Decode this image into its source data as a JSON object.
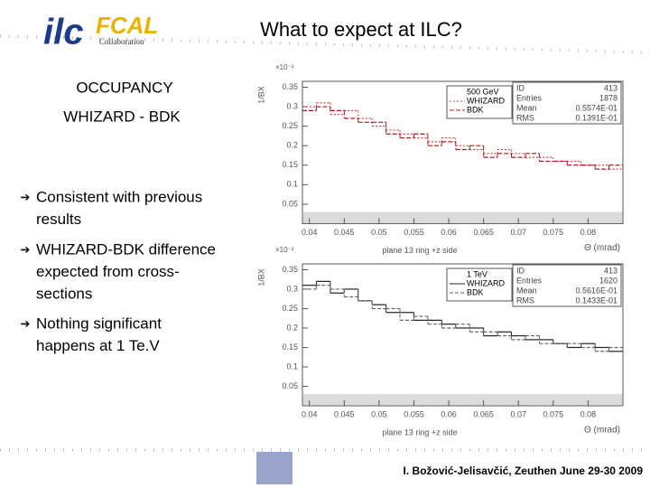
{
  "title": "What to expect at ILC?",
  "logo": {
    "main": "ilc",
    "sub": "FCAL",
    "caption": "Collaboration"
  },
  "subtitle": [
    "OCCUPANCY",
    "WHIZARD - BDK"
  ],
  "bullets": [
    [
      "Consistent with previous",
      "results"
    ],
    [
      "WHIZARD-BDK difference",
      "expected  from cross-",
      "sections"
    ],
    [
      "Nothing significant",
      "happens at 1 Te.V"
    ]
  ],
  "footer": "I. Božović-Jelisavčić, Zeuthen June 29-30 2009",
  "chart_data": [
    {
      "type": "histogram",
      "legend_title": "500 GeV",
      "y_multiplier": "×10⁻²",
      "ylabel": "1/BX",
      "xlabel": "Θ (mrad)",
      "caption": "plane 13 ring +z side",
      "bins": [
        0.039,
        0.041,
        0.043,
        0.045,
        0.047,
        0.049,
        0.051,
        0.053,
        0.055,
        0.057,
        0.059,
        0.061,
        0.063,
        0.065,
        0.067,
        0.069,
        0.071,
        0.073,
        0.075,
        0.077,
        0.079,
        0.081,
        0.083,
        0.085
      ],
      "series": [
        {
          "name": "WHIZARD",
          "color": "#d23c3c",
          "dash": "2,2",
          "values": [
            0.3,
            0.31,
            0.28,
            0.29,
            0.27,
            0.25,
            0.24,
            0.23,
            0.22,
            0.21,
            0.22,
            0.2,
            0.19,
            0.18,
            0.19,
            0.18,
            0.17,
            0.17,
            0.16,
            0.16,
            0.15,
            0.15,
            0.14
          ]
        },
        {
          "name": "BDK",
          "color": "#b01818",
          "dash": "5,2",
          "values": [
            0.29,
            0.3,
            0.29,
            0.27,
            0.26,
            0.26,
            0.23,
            0.22,
            0.23,
            0.2,
            0.21,
            0.19,
            0.2,
            0.17,
            0.18,
            0.17,
            0.18,
            0.16,
            0.16,
            0.15,
            0.15,
            0.14,
            0.15
          ]
        }
      ],
      "xlim": [
        0.039,
        0.085
      ],
      "xticks": [
        0.04,
        0.045,
        0.05,
        0.055,
        0.06,
        0.065,
        0.07,
        0.075,
        0.08
      ],
      "ylim": [
        0,
        0.365
      ],
      "yticks": [
        0.05,
        0.1,
        0.15,
        0.2,
        0.25,
        0.3,
        0.35
      ],
      "stats": [
        [
          "ID",
          "413"
        ],
        [
          "Entries",
          "1878"
        ],
        [
          "Mean",
          "0.5574E-01"
        ],
        [
          "RMS",
          "0.1391E-01"
        ]
      ]
    },
    {
      "type": "histogram",
      "legend_title": "1 TeV",
      "y_multiplier": "×10⁻²",
      "ylabel": "1/BX",
      "xlabel": "Θ (mrad)",
      "caption": "plane 13 ring +z side",
      "bins": [
        0.039,
        0.041,
        0.043,
        0.045,
        0.047,
        0.049,
        0.051,
        0.053,
        0.055,
        0.057,
        0.059,
        0.061,
        0.063,
        0.065,
        0.067,
        0.069,
        0.071,
        0.073,
        0.075,
        0.077,
        0.079,
        0.081,
        0.083,
        0.085
      ],
      "series": [
        {
          "name": "WHIZARD",
          "color": "#222222",
          "dash": "none",
          "values": [
            0.31,
            0.32,
            0.29,
            0.3,
            0.27,
            0.26,
            0.24,
            0.24,
            0.22,
            0.22,
            0.21,
            0.2,
            0.2,
            0.18,
            0.19,
            0.18,
            0.17,
            0.17,
            0.16,
            0.15,
            0.16,
            0.15,
            0.14
          ]
        },
        {
          "name": "BDK",
          "color": "#666666",
          "dash": "4,2",
          "values": [
            0.3,
            0.31,
            0.3,
            0.28,
            0.27,
            0.25,
            0.25,
            0.22,
            0.23,
            0.21,
            0.2,
            0.21,
            0.19,
            0.19,
            0.18,
            0.17,
            0.18,
            0.16,
            0.16,
            0.16,
            0.15,
            0.14,
            0.15
          ]
        }
      ],
      "xlim": [
        0.039,
        0.085
      ],
      "xticks": [
        0.04,
        0.045,
        0.05,
        0.055,
        0.06,
        0.065,
        0.07,
        0.075,
        0.08
      ],
      "ylim": [
        0,
        0.365
      ],
      "yticks": [
        0.05,
        0.1,
        0.15,
        0.2,
        0.25,
        0.3,
        0.35
      ],
      "stats": [
        [
          "ID",
          "413"
        ],
        [
          "Entries",
          "1620"
        ],
        [
          "Mean",
          "0.5616E-01"
        ],
        [
          "RMS",
          "0.1433E-01"
        ]
      ]
    }
  ]
}
